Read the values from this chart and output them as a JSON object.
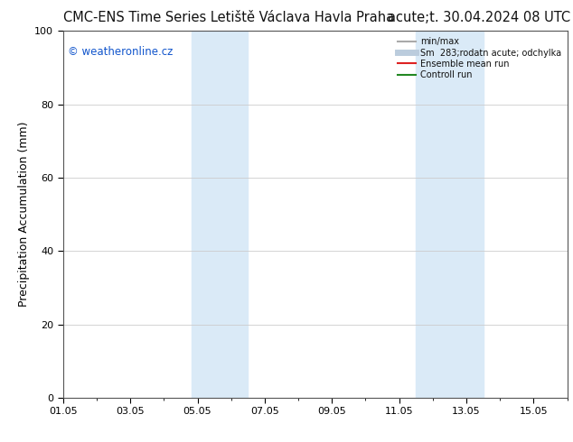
{
  "title_left": "CMC-ENS Time Series Letiště Václava Havla Praha",
  "title_right": "acute;t. 30.04.2024 08 UTC",
  "ylabel": "Precipitation Accumulation (mm)",
  "ylim": [
    0,
    100
  ],
  "yticks": [
    0,
    20,
    40,
    60,
    80,
    100
  ],
  "xtick_labels": [
    "01.05",
    "03.05",
    "05.05",
    "07.05",
    "09.05",
    "11.05",
    "13.05",
    "15.05"
  ],
  "xtick_positions": [
    0,
    2,
    4,
    6,
    8,
    10,
    12,
    14
  ],
  "xlim": [
    0,
    15
  ],
  "shaded_regions": [
    {
      "start": 3.833,
      "end": 5.5,
      "color": "#daeaf7"
    },
    {
      "start": 10.5,
      "end": 12.5,
      "color": "#daeaf7"
    }
  ],
  "watermark_text": "© weatheronline.cz",
  "watermark_color": "#1155cc",
  "legend_entries": [
    {
      "label": "min/max",
      "color": "#aaaaaa",
      "lw": 1.5
    },
    {
      "label": "Sm  283;rodatn acute; odchylka",
      "color": "#bbccdd",
      "lw": 5
    },
    {
      "label": "Ensemble mean run",
      "color": "#dd2222",
      "lw": 1.5
    },
    {
      "label": "Controll run",
      "color": "#228822",
      "lw": 1.5
    }
  ],
  "bg_color": "#ffffff",
  "grid_color": "#cccccc",
  "title_fontsize": 10.5,
  "label_fontsize": 9,
  "tick_fontsize": 8,
  "watermark_fontsize": 8.5
}
